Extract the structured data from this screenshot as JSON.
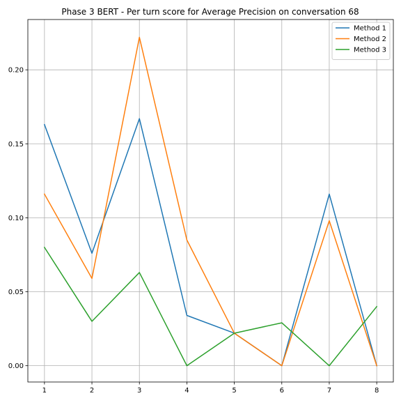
{
  "chart_data": {
    "type": "line",
    "title": "Phase 3 BERT - Per turn score for Average Precision on conversation 68",
    "xlabel": "",
    "ylabel": "",
    "x": [
      1,
      2,
      3,
      4,
      5,
      6,
      7,
      8
    ],
    "xticks": [
      "1",
      "2",
      "3",
      "4",
      "5",
      "6",
      "7",
      "8"
    ],
    "yticks": [
      "0.00",
      "0.05",
      "0.10",
      "0.15",
      "0.20"
    ],
    "yticks_values": [
      0.0,
      0.05,
      0.1,
      0.15,
      0.2
    ],
    "xlim": [
      0.65,
      8.35
    ],
    "ylim": [
      -0.011,
      0.234
    ],
    "grid": true,
    "legend_position": "upper right",
    "series": [
      {
        "name": "Method 1",
        "color": "#1f77b4",
        "values": [
          0.163,
          0.076,
          0.167,
          0.034,
          0.022,
          0.0,
          0.116,
          0.0
        ]
      },
      {
        "name": "Method 2",
        "color": "#ff7f0e",
        "values": [
          0.116,
          0.059,
          0.222,
          0.085,
          0.022,
          0.0,
          0.098,
          0.0
        ]
      },
      {
        "name": "Method 3",
        "color": "#2ca02c",
        "values": [
          0.08,
          0.03,
          0.063,
          0.0,
          0.022,
          0.029,
          0.0,
          0.04
        ]
      }
    ]
  }
}
